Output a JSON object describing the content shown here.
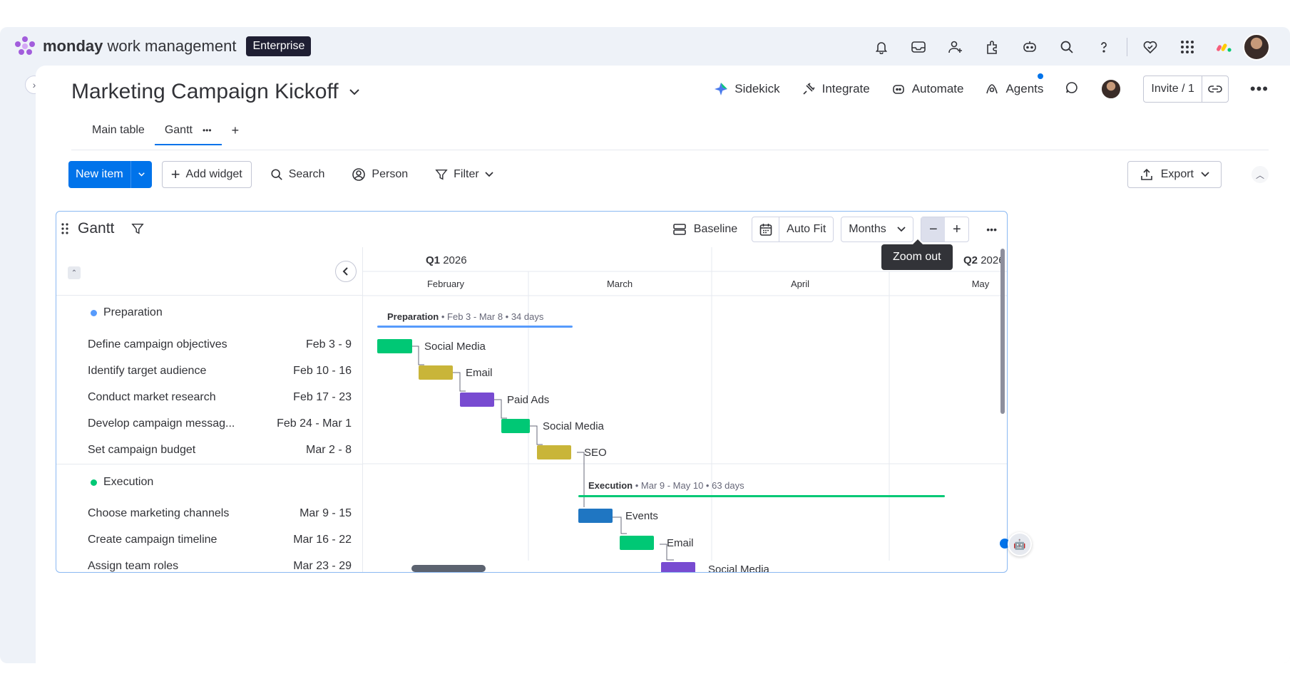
{
  "app": {
    "brand_bold": "monday",
    "brand_rest": " work management",
    "plan_badge": "Enterprise"
  },
  "board": {
    "title": "Marketing Campaign Kickoff",
    "actions": {
      "sidekick": "Sidekick",
      "integrate": "Integrate",
      "automate": "Automate",
      "agents": "Agents",
      "invite": "Invite / 1"
    },
    "tabs": [
      {
        "label": "Main table"
      },
      {
        "label": "Gantt"
      }
    ]
  },
  "toolbar": {
    "new_item": "New item",
    "add_widget": "Add widget",
    "search": "Search",
    "person": "Person",
    "filter": "Filter",
    "export": "Export"
  },
  "widget": {
    "title": "Gantt",
    "baseline": "Baseline",
    "auto_fit": "Auto Fit",
    "scale": "Months",
    "tooltip": "Zoom out"
  },
  "timeline": {
    "quarters": [
      {
        "label": "Q1",
        "year": "2026"
      },
      {
        "label": "Q2",
        "year": "2026"
      }
    ],
    "months": [
      "February",
      "March",
      "April",
      "May"
    ]
  },
  "groups": [
    {
      "name": "Preparation",
      "color": "#579bfc",
      "summary_name": "Preparation",
      "summary_detail": " • Feb 3 - Mar 8 • 34 days",
      "items": [
        {
          "name": "Define campaign objectives",
          "dates": "Feb 3 - 9",
          "bar_label": "Social Media",
          "color": "#00c875"
        },
        {
          "name": "Identify target audience",
          "dates": "Feb 10 - 16",
          "bar_label": "Email",
          "color": "#c9b539"
        },
        {
          "name": "Conduct market research",
          "dates": "Feb 17 - 23",
          "bar_label": "Paid Ads",
          "color": "#784bd1"
        },
        {
          "name": "Develop campaign messag...",
          "dates": "Feb 24 - Mar 1",
          "bar_label": "Social Media",
          "color": "#00c875"
        },
        {
          "name": "Set campaign budget",
          "dates": "Mar 2 - 8",
          "bar_label": "SEO",
          "color": "#c9b539"
        }
      ]
    },
    {
      "name": "Execution",
      "color": "#00c875",
      "summary_name": "Execution",
      "summary_detail": " • Mar 9 - May 10 • 63 days",
      "items": [
        {
          "name": "Choose marketing channels",
          "dates": "Mar 9 - 15",
          "bar_label": "Events",
          "color": "#1f76c2"
        },
        {
          "name": "Create campaign timeline",
          "dates": "Mar 16 - 22",
          "bar_label": "Email",
          "color": "#00c875"
        },
        {
          "name": "Assign team roles",
          "dates": "Mar 23 - 29",
          "bar_label": "Social Media",
          "color": "#784bd1"
        }
      ]
    }
  ]
}
